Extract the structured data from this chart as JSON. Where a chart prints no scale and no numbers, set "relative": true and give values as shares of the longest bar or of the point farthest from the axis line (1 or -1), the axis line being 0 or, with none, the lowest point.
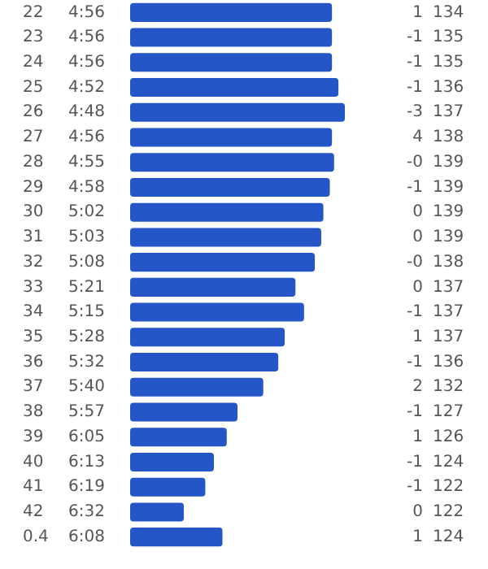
{
  "chart_data": {
    "type": "bar",
    "orientation": "horizontal",
    "relative": true,
    "color": "#2456c8",
    "tick_labels": false,
    "categories": [
      "22",
      "23",
      "24",
      "25",
      "26",
      "27",
      "28",
      "29",
      "30",
      "31",
      "32",
      "33",
      "34",
      "35",
      "36",
      "37",
      "38",
      "39",
      "40",
      "41",
      "42",
      "0.4"
    ],
    "values": [
      0.94,
      0.94,
      0.94,
      0.97,
      1,
      0.94,
      0.95,
      0.93,
      0.9,
      0.89,
      0.86,
      0.77,
      0.81,
      0.72,
      0.69,
      0.62,
      0.5,
      0.45,
      0.39,
      0.35,
      0.25,
      0.43
    ],
    "y2_categories": [
      "4:56",
      "4:56",
      "4:56",
      "4:52",
      "4:48",
      "4:56",
      "4:55",
      "4:58",
      "5:02",
      "5:03",
      "5:08",
      "5:21",
      "5:15",
      "5:28",
      "5:32",
      "5:40",
      "5:57",
      "6:05",
      "6:13",
      "6:19",
      "6:32",
      "6:08"
    ],
    "annotations": [
      "1",
      "-1",
      "-1",
      "-1",
      "-3",
      "4",
      "-0",
      "-1",
      "0",
      "0",
      "-0",
      "0",
      "-1",
      "1",
      "-1",
      "2",
      "-1",
      "1",
      "-1",
      "-1",
      "0",
      "1",
      "134",
      "135",
      "135",
      "136",
      "137",
      "138",
      "139",
      "139",
      "139",
      "139",
      "138",
      "137",
      "137",
      "137",
      "136",
      "132",
      "127",
      "126",
      "124",
      "122",
      "122",
      "124"
    ],
    "legend": false
  }
}
